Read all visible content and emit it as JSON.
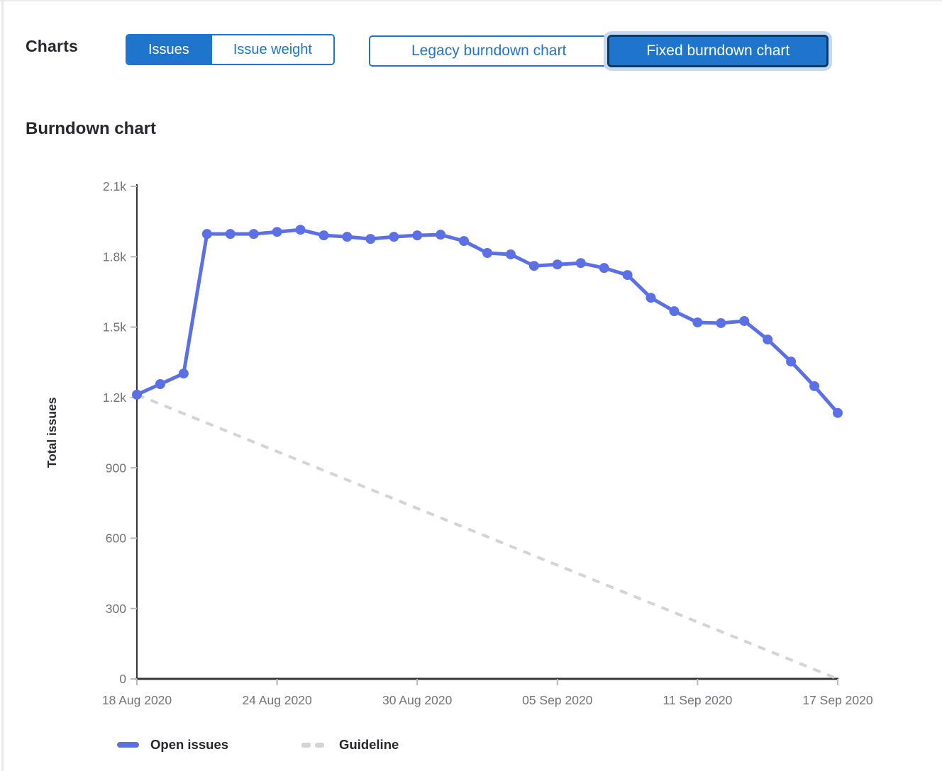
{
  "header": {
    "title": "Charts",
    "metric_toggle": [
      {
        "label": "Issues",
        "selected": true
      },
      {
        "label": "Issue weight",
        "selected": false
      }
    ],
    "chart_type_toggle": [
      {
        "label": "Legacy burndown chart",
        "selected": false
      },
      {
        "label": "Fixed burndown chart",
        "selected": true
      }
    ]
  },
  "section": {
    "title": "Burndown chart"
  },
  "colors": {
    "accent_blue": "#1f75cb",
    "selected_border": "#0d3a66",
    "focus_ring": "#c5daf0",
    "line_blue": "#5c70e6",
    "guideline_gray": "#d4d4d8",
    "axis_line": "#35353b",
    "tick_mark": "#b8b8bc",
    "axis_text": "#737278"
  },
  "chart_data": {
    "type": "line",
    "title": "Burndown chart",
    "xlabel": "",
    "ylabel": "Total issues",
    "ylim": [
      0,
      2100
    ],
    "grid": false,
    "legend_position": "bottom",
    "y_ticks": [
      0,
      300,
      600,
      900,
      1200,
      1500,
      1800,
      2100
    ],
    "y_tick_labels": [
      "0",
      "300",
      "600",
      "900",
      "1.2k",
      "1.5k",
      "1.8k",
      "2.1k"
    ],
    "x_tick_labels": [
      "18 Aug 2020",
      "24 Aug 2020",
      "30 Aug 2020",
      "05 Sep 2020",
      "11 Sep 2020",
      "17 Sep 2020"
    ],
    "x_tick_days": [
      0,
      6,
      12,
      18,
      24,
      30
    ],
    "x": [
      "18 Aug 2020",
      "19 Aug 2020",
      "20 Aug 2020",
      "21 Aug 2020",
      "22 Aug 2020",
      "23 Aug 2020",
      "24 Aug 2020",
      "25 Aug 2020",
      "26 Aug 2020",
      "27 Aug 2020",
      "28 Aug 2020",
      "29 Aug 2020",
      "30 Aug 2020",
      "31 Aug 2020",
      "01 Sep 2020",
      "02 Sep 2020",
      "03 Sep 2020",
      "04 Sep 2020",
      "05 Sep 2020",
      "06 Sep 2020",
      "07 Sep 2020",
      "08 Sep 2020",
      "09 Sep 2020",
      "10 Sep 2020",
      "11 Sep 2020",
      "12 Sep 2020",
      "13 Sep 2020",
      "14 Sep 2020",
      "15 Sep 2020",
      "16 Sep 2020",
      "17 Sep 2020"
    ],
    "series": [
      {
        "name": "Open issues",
        "style": "solid",
        "marker": "circle",
        "color": "#5c70e6",
        "values": [
          1212,
          1257,
          1302,
          1897,
          1897,
          1897,
          1906,
          1915,
          1891,
          1885,
          1876,
          1885,
          1891,
          1894,
          1867,
          1816,
          1810,
          1761,
          1767,
          1773,
          1752,
          1722,
          1625,
          1568,
          1520,
          1517,
          1526,
          1447,
          1353,
          1248,
          1134
        ]
      },
      {
        "name": "Guideline",
        "style": "dashed",
        "color": "#d4d4d8",
        "points": [
          {
            "x": "18 Aug 2020",
            "value": 1212
          },
          {
            "x": "17 Sep 2020",
            "value": 0
          }
        ]
      }
    ]
  }
}
